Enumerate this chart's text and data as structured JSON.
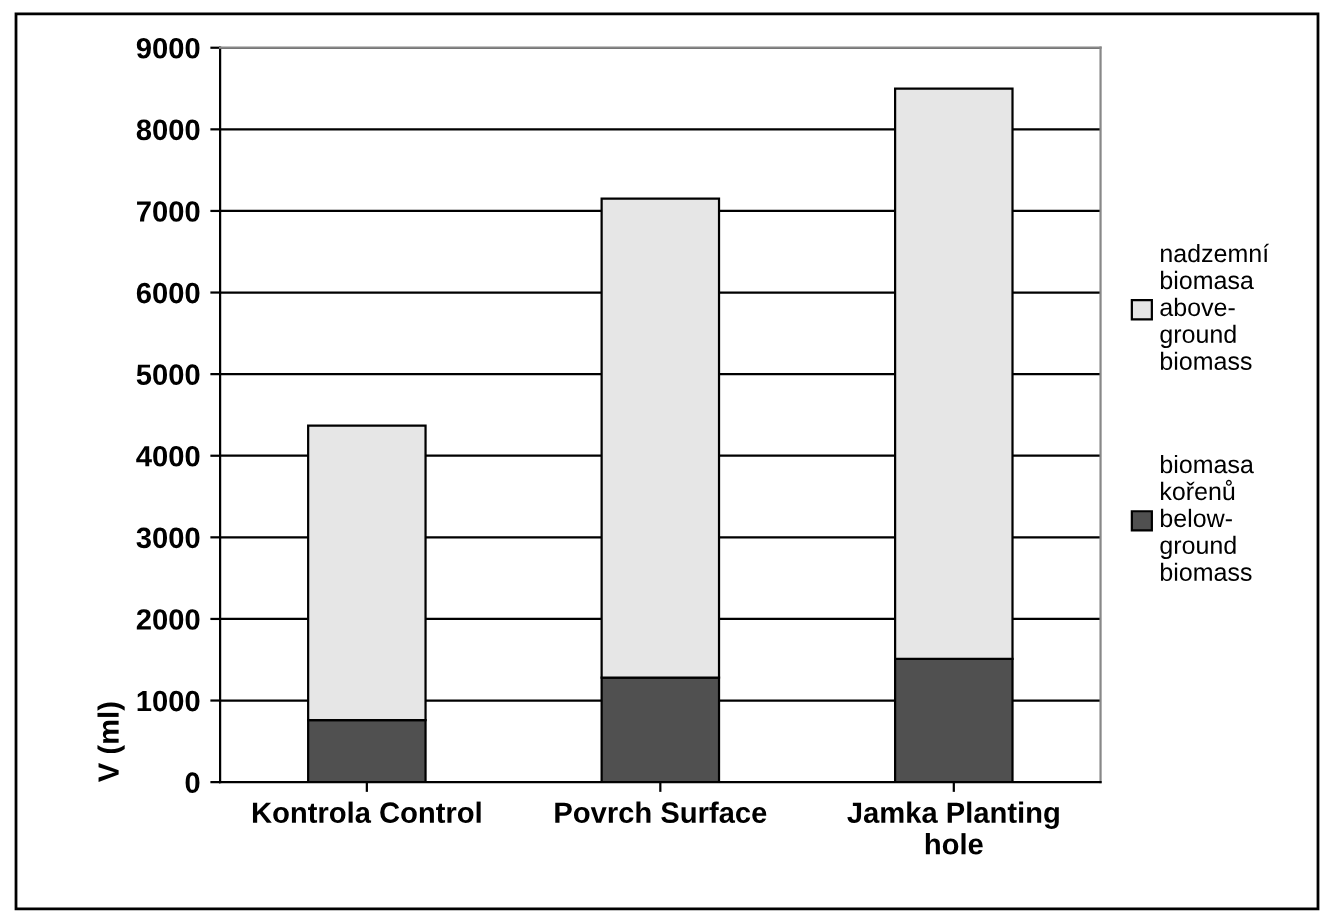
{
  "chart_data": {
    "type": "bar",
    "stacked": true,
    "ylabel": "V (ml)",
    "categories": [
      "Kontrola Control",
      "Povrch Surface",
      "Jamka Planting\nhole"
    ],
    "series": [
      {
        "name": "biomasa\nkořenů\nbelow-\nground\nbiomass",
        "color": "#505050",
        "values": [
          760,
          1280,
          1510
        ]
      },
      {
        "name": "nadzemní\nbiomasa\nabove-\nground\nbiomass",
        "color": "#e6e6e6",
        "values": [
          3610,
          5870,
          6990
        ]
      }
    ],
    "ylim": [
      0,
      9000
    ],
    "yticks": [
      0,
      1000,
      2000,
      3000,
      4000,
      5000,
      6000,
      7000,
      8000,
      9000
    ],
    "grid": "y",
    "legend": "right"
  }
}
